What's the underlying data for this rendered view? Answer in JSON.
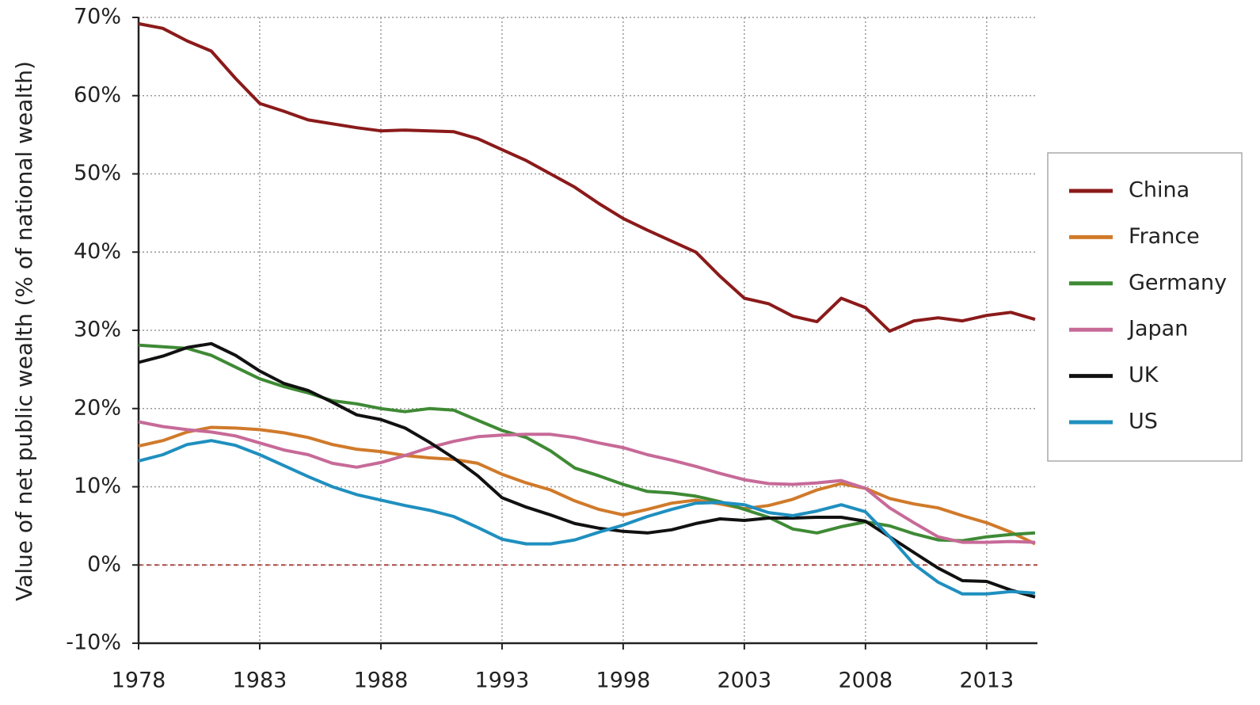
{
  "chart_data": {
    "type": "line",
    "y_label": "Value of net public wealth (% of national wealth)",
    "x": [
      1978,
      1979,
      1980,
      1981,
      1982,
      1983,
      1984,
      1985,
      1986,
      1987,
      1988,
      1989,
      1990,
      1991,
      1992,
      1993,
      1994,
      1995,
      1996,
      1997,
      1998,
      1999,
      2000,
      2001,
      2002,
      2003,
      2004,
      2005,
      2006,
      2007,
      2008,
      2009,
      2010,
      2011,
      2012,
      2013,
      2014,
      2015
    ],
    "series": [
      {
        "name": "China",
        "color": "#8b1a1a",
        "values": [
          69.2,
          68.6,
          67,
          65.7,
          62.2,
          59,
          58,
          56.9,
          56.4,
          55.9,
          55.5,
          55.6,
          55.5,
          55.4,
          54.5,
          53.1,
          51.7,
          50,
          48.3,
          46.2,
          44.3,
          42.8,
          41.4,
          40,
          36.9,
          34.1,
          33.4,
          31.8,
          31.1,
          34.1,
          32.9,
          29.9,
          31.2,
          31.6,
          31.2,
          31.9,
          32.3,
          31.4
        ]
      },
      {
        "name": "France",
        "color": "#d07a2a",
        "values": [
          15.2,
          15.9,
          17,
          17.6,
          17.5,
          17.3,
          16.9,
          16.3,
          15.4,
          14.8,
          14.5,
          14,
          13.7,
          13.5,
          13,
          11.6,
          10.5,
          9.6,
          8.2,
          7.1,
          6.4,
          7.1,
          7.9,
          8.3,
          7.8,
          7.2,
          7.6,
          8.4,
          9.6,
          10.4,
          9.8,
          8.5,
          7.8,
          7.3,
          6.3,
          5.4,
          4.2,
          2.7
        ]
      },
      {
        "name": "Germany",
        "color": "#3f8a35",
        "values": [
          28.1,
          27.9,
          27.7,
          26.8,
          25.3,
          23.8,
          22.8,
          22,
          21,
          20.6,
          20,
          19.6,
          20,
          19.8,
          18.5,
          17.2,
          16.3,
          14.6,
          12.4,
          11.4,
          10.3,
          9.4,
          9.2,
          8.8,
          8.1,
          7.1,
          6.1,
          4.6,
          4.1,
          4.9,
          5.5,
          5,
          4,
          3.2,
          3.1,
          3.6,
          3.9,
          4.1
        ]
      },
      {
        "name": "Japan",
        "color": "#c76a98",
        "values": [
          18.3,
          17.7,
          17.3,
          17,
          16.5,
          15.6,
          14.7,
          14.1,
          13,
          12.5,
          13.1,
          14,
          15,
          15.8,
          16.4,
          16.6,
          16.7,
          16.7,
          16.3,
          15.6,
          15,
          14.1,
          13.4,
          12.6,
          11.7,
          10.9,
          10.4,
          10.3,
          10.5,
          10.8,
          9.8,
          7.3,
          5.4,
          3.6,
          2.9,
          2.9,
          3,
          2.9
        ]
      },
      {
        "name": "UK",
        "color": "#111111",
        "values": [
          25.9,
          26.7,
          27.8,
          28.3,
          26.8,
          24.8,
          23.2,
          22.3,
          20.8,
          19.2,
          18.6,
          17.5,
          15.7,
          13.7,
          11.4,
          8.6,
          7.4,
          6.4,
          5.3,
          4.7,
          4.3,
          4.1,
          4.5,
          5.3,
          5.9,
          5.7,
          6,
          6,
          6.1,
          6.1,
          5.6,
          3.6,
          1.6,
          -0.4,
          -2,
          -2.1,
          -3.2,
          -4.1
        ]
      },
      {
        "name": "US",
        "color": "#1f8fbf",
        "values": [
          13.3,
          14.1,
          15.4,
          15.9,
          15.3,
          14.1,
          12.7,
          11.3,
          10,
          9,
          8.3,
          7.6,
          7,
          6.2,
          4.8,
          3.3,
          2.7,
          2.7,
          3.2,
          4.2,
          5.1,
          6.2,
          7.1,
          7.9,
          8,
          7.7,
          6.7,
          6.3,
          6.9,
          7.7,
          6.8,
          3.6,
          0.1,
          -2.2,
          -3.7,
          -3.7,
          -3.4,
          -3.6
        ]
      }
    ],
    "xlim": [
      1978,
      2015
    ],
    "xticks": [
      1978,
      1983,
      1988,
      1993,
      1998,
      2003,
      2008,
      2013
    ],
    "ylim": [
      -10,
      70
    ],
    "yticks": [
      {
        "value": -10,
        "label": "-10%"
      },
      {
        "value": 0,
        "label": "0%"
      },
      {
        "value": 10,
        "label": "10%"
      },
      {
        "value": 20,
        "label": "20%"
      },
      {
        "value": 30,
        "label": "30%"
      },
      {
        "value": 40,
        "label": "40%"
      },
      {
        "value": 50,
        "label": "50%"
      },
      {
        "value": 60,
        "label": "60%"
      },
      {
        "value": 70,
        "label": "70%"
      }
    ],
    "grid": true,
    "legend": "right"
  }
}
